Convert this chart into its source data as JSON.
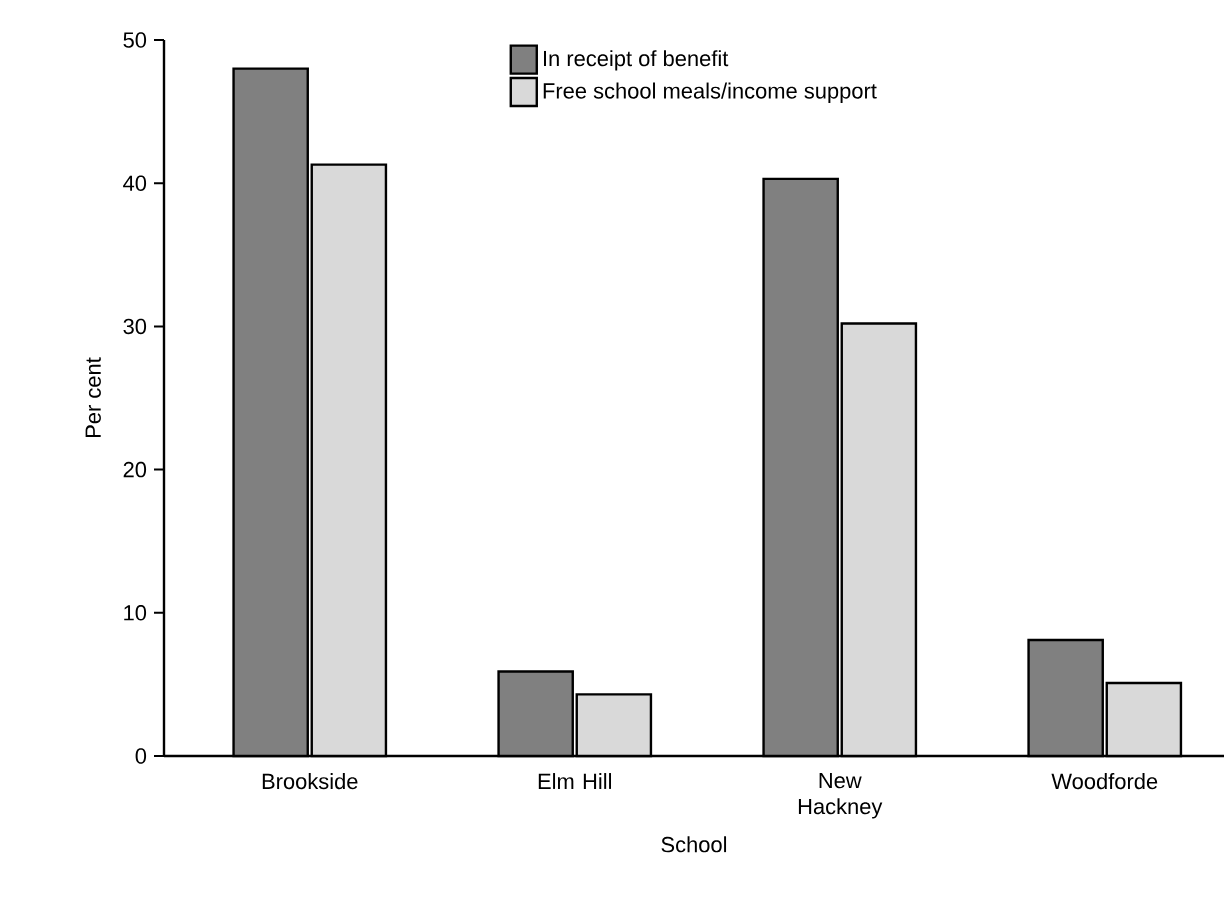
{
  "chart_data": {
    "type": "bar",
    "xlabel": "School",
    "ylabel": "Per cent",
    "categories": [
      "Brookside",
      "Elm Hill",
      "New Hackney",
      "Woodforde"
    ],
    "series": [
      {
        "name": "In receipt of benefit",
        "color": "#808080",
        "values": [
          48,
          5.9,
          40.3,
          8.1
        ]
      },
      {
        "name": "Free school meals/income support",
        "color": "#d9d9d9",
        "values": [
          41.3,
          4.3,
          30.2,
          5.1
        ]
      }
    ],
    "ylim": [
      0,
      50
    ],
    "yticks": [
      0,
      10,
      20,
      30,
      40,
      50
    ],
    "legend": "top right"
  }
}
